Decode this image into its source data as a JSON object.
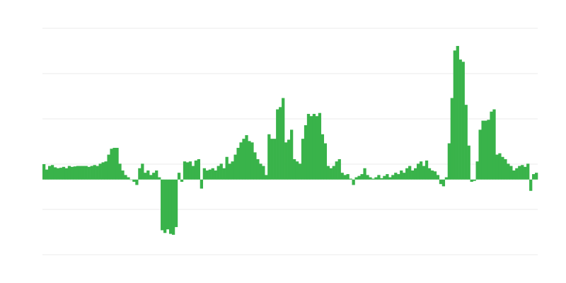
{
  "chart_data": {
    "type": "bar",
    "title": "",
    "xlabel": "",
    "ylabel": "",
    "grid": true,
    "legend": "none",
    "bar_color": "#39b34a",
    "grid_color": "#ebebeb",
    "ylim": [
      -1.66,
      3.34
    ],
    "grid_values": [
      -1.66,
      -0.66,
      0.34,
      1.34,
      2.34,
      3.34
    ],
    "values": [
      0.34,
      0.22,
      0.3,
      0.32,
      0.27,
      0.25,
      0.26,
      0.28,
      0.25,
      0.3,
      0.28,
      0.29,
      0.3,
      0.3,
      0.3,
      0.3,
      0.28,
      0.3,
      0.32,
      0.3,
      0.35,
      0.38,
      0.4,
      0.55,
      0.68,
      0.7,
      0.7,
      0.35,
      0.2,
      0.1,
      0.05,
      0,
      -0.05,
      -0.12,
      0.25,
      0.35,
      0.15,
      0.2,
      0.1,
      0.15,
      0.2,
      0.05,
      -1.12,
      -1.18,
      -1.1,
      -1.2,
      -1.22,
      -1.05,
      0.15,
      -0.05,
      0.4,
      0.38,
      0.4,
      0.3,
      0.42,
      0.45,
      -0.2,
      0.25,
      0.2,
      0.22,
      0.25,
      0.2,
      0.3,
      0.35,
      0.25,
      0.5,
      0.35,
      0.4,
      0.55,
      0.7,
      0.82,
      0.9,
      0.98,
      0.85,
      0.82,
      0.6,
      0.45,
      0.35,
      0.3,
      0.1,
      1.0,
      0.9,
      0.9,
      1.55,
      1.6,
      1.8,
      0.82,
      0.88,
      1.1,
      0.45,
      0.4,
      0.35,
      0.9,
      1.2,
      1.45,
      1.4,
      1.45,
      1.4,
      1.47,
      1.0,
      0.8,
      0.3,
      0.25,
      0.3,
      0.4,
      0.45,
      0.15,
      0.1,
      0.12,
      0.02,
      -0.12,
      0.05,
      0.08,
      0.12,
      0.25,
      0.1,
      0.05,
      0.02,
      0.05,
      0.1,
      0.03,
      0.08,
      0.12,
      0.05,
      0.1,
      0.15,
      0.12,
      0.2,
      0.15,
      0.25,
      0.3,
      0.2,
      0.25,
      0.35,
      0.4,
      0.3,
      0.42,
      0.25,
      0.2,
      0.18,
      0.1,
      -0.1,
      -0.15,
      0.05,
      0.8,
      1.8,
      2.85,
      2.95,
      2.65,
      2.6,
      1.65,
      0.75,
      -0.05,
      -0.03,
      0.4,
      1.1,
      1.3,
      1.3,
      1.32,
      1.5,
      1.55,
      0.55,
      0.58,
      0.5,
      0.45,
      0.35,
      0.3,
      0.2,
      0.25,
      0.3,
      0.32,
      0.28,
      0.35,
      -0.25,
      0.12,
      0.15
    ]
  }
}
